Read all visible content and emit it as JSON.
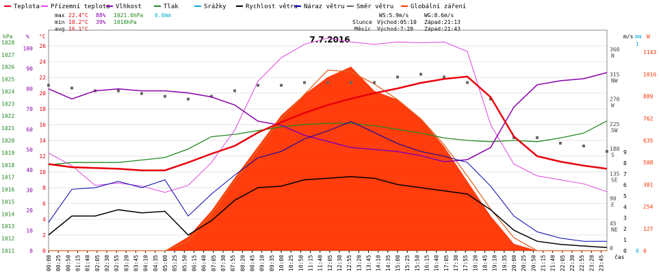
{
  "chart_data": {
    "type": "line",
    "title": "7.7.2016",
    "legend": [
      {
        "label": "Teplota",
        "color": "#e8000b"
      },
      {
        "label": "Přízemní teplota",
        "color": "#dd44dd"
      },
      {
        "label": "Vlhkost",
        "color": "#8800aa"
      },
      {
        "label": "Tlak",
        "color": "#228822"
      },
      {
        "label": "Srážky",
        "color": "#00aacc"
      },
      {
        "label": "Rychlost větru",
        "color": "#000000"
      },
      {
        "label": "Náraz větru",
        "color": "#0000aa"
      },
      {
        "label": "Směr větru",
        "color": "#666666"
      },
      {
        "label": "Globální záření",
        "color": "#ff3300"
      }
    ],
    "stats": {
      "max": {
        "label": "max",
        "temp": "22.4°C",
        "hum": "88%",
        "press": "1021.6hPa",
        "rain": "0.0mm"
      },
      "min": {
        "label": "min",
        "temp": "10.2°C",
        "hum": "39%",
        "press": "1018hPa"
      },
      "avg": {
        "label": "avg",
        "temp": "16.1°C"
      }
    },
    "info": {
      "ws": "WS:5.9m/s",
      "wg": "WG:8.6m/s",
      "sun": "Slunce",
      "sunrise": "Východ:05:10",
      "sunset": "Západ:21:13",
      "moon": "Měsíc",
      "moonrise": "Východ:7:29",
      "moonset": "Západ:21:43"
    },
    "axis_labels": {
      "hpa": "hPa",
      "pct": "%",
      "degc": "°C",
      "ms": "m/s",
      "mm": "mm",
      "w": "W",
      "xlabel": "čas"
    },
    "yaxis_hpa": [
      1011,
      1012,
      1013,
      1014,
      1015,
      1016,
      1017,
      1018,
      1019,
      1020,
      1021,
      1022,
      1023,
      1024,
      1025,
      1026,
      1027,
      1028
    ],
    "yaxis_pct": [
      0,
      10,
      20,
      30,
      40,
      50,
      60,
      70,
      80,
      90,
      100
    ],
    "yaxis_degc": [
      0,
      2,
      4,
      6,
      8,
      10,
      12,
      14,
      16,
      18,
      20,
      22,
      24,
      26
    ],
    "yaxis_dir": [
      "0",
      "45 NE",
      "90 E",
      "135 SE",
      "180 S",
      "225 SW",
      "270 W",
      "315 NW",
      "360 N"
    ],
    "yaxis_ms": [
      0,
      1,
      2,
      3,
      4,
      5,
      6,
      7,
      8,
      9
    ],
    "yaxis_mm": [
      0,
      1
    ],
    "yaxis_w": [
      0,
      127,
      254,
      381,
      508,
      635,
      762,
      889,
      1016,
      1143
    ],
    "xticks": [
      "00:00",
      "00:25",
      "00:50",
      "01:15",
      "01:40",
      "02:05",
      "02:30",
      "02:55",
      "03:20",
      "03:45",
      "04:10",
      "04:35",
      "05:00",
      "05:25",
      "05:50",
      "06:15",
      "06:40",
      "07:05",
      "07:30",
      "07:55",
      "08:20",
      "08:45",
      "09:10",
      "09:35",
      "10:00",
      "10:25",
      "10:50",
      "11:15",
      "11:40",
      "12:05",
      "12:30",
      "12:55",
      "13:20",
      "13:45",
      "14:10",
      "14:35",
      "15:00",
      "15:25",
      "15:50",
      "16:15",
      "16:40",
      "17:05",
      "17:30",
      "17:55",
      "18:20",
      "18:45",
      "19:10",
      "19:35",
      "20:00",
      "20:25",
      "20:50",
      "21:15",
      "21:40",
      "22:05",
      "22:30",
      "22:55",
      "23:20",
      "23:45"
    ],
    "x_hours": [
      0,
      1,
      2,
      3,
      4,
      5,
      6,
      7,
      8,
      9,
      10,
      11,
      12,
      13,
      14,
      15,
      16,
      17,
      18,
      19,
      20,
      21,
      22,
      23,
      24
    ],
    "temperature_c": [
      11.0,
      10.6,
      10.5,
      10.4,
      10.2,
      10.2,
      11.2,
      12.3,
      13.3,
      15.0,
      16.3,
      17.5,
      18.5,
      19.3,
      20.0,
      20.6,
      21.3,
      21.8,
      22.1,
      19.5,
      14.5,
      12.0,
      11.3,
      10.8,
      10.4
    ],
    "ground_temperature_c": [
      12.4,
      10.8,
      8.3,
      8.6,
      8.2,
      7.4,
      8.3,
      11.2,
      15.3,
      21.5,
      24.5,
      26.2,
      27.0,
      26.5,
      26.2,
      26.5,
      26.4,
      26.5,
      25.3,
      16.0,
      11.0,
      9.5,
      9.0,
      8.5,
      7.5
    ],
    "humidity_pct": [
      80,
      75,
      79,
      80,
      79,
      79,
      78,
      76,
      72,
      64,
      62,
      57,
      54,
      51,
      50,
      49,
      47,
      44,
      45,
      51,
      71,
      82,
      84,
      85,
      88
    ],
    "pressure_hpa": [
      1018.0,
      1018.2,
      1018.2,
      1018.2,
      1018.4,
      1018.6,
      1019.3,
      1020.3,
      1020.5,
      1020.8,
      1021.1,
      1021.3,
      1021.4,
      1021.4,
      1021.2,
      1020.9,
      1020.6,
      1020.2,
      1020.0,
      1019.9,
      1020.0,
      1019.9,
      1020.2,
      1020.6,
      1021.6
    ],
    "wind_speed_ms": [
      1.0,
      2.2,
      2.2,
      2.6,
      2.4,
      2.5,
      1.0,
      1.9,
      3.2,
      4.0,
      4.1,
      4.5,
      4.6,
      4.7,
      4.6,
      4.2,
      4.0,
      3.8,
      3.6,
      2.6,
      1.3,
      0.6,
      0.4,
      0.3,
      0.2
    ],
    "wind_gust_ms": [
      1.8,
      3.9,
      4.0,
      4.4,
      4.0,
      4.5,
      2.2,
      3.6,
      4.8,
      5.9,
      6.3,
      7.1,
      7.6,
      8.2,
      7.5,
      6.8,
      6.3,
      6.0,
      5.6,
      4.1,
      2.2,
      1.2,
      0.8,
      0.6,
      0.6
    ],
    "wind_direction_deg": [
      300,
      295,
      290,
      290,
      285,
      280,
      275,
      280,
      290,
      300,
      300,
      305,
      305,
      305,
      305,
      315,
      320,
      315,
      305,
      275,
      205,
      205,
      195,
      190,
      180
    ],
    "solar_radiation_wm2": [
      0,
      0,
      0,
      0,
      0,
      0,
      80,
      230,
      420,
      600,
      780,
      900,
      1000,
      1060,
      920,
      870,
      760,
      600,
      400,
      200,
      40,
      0,
      0,
      0,
      0
    ],
    "solar_theoretical_wm2": [
      0,
      0,
      0,
      0,
      0,
      0,
      55,
      210,
      400,
      580,
      760,
      900,
      1040,
      1030,
      960,
      870,
      760,
      610,
      430,
      240,
      75,
      0,
      0,
      0,
      0
    ],
    "rain_mm": 0.0
  }
}
